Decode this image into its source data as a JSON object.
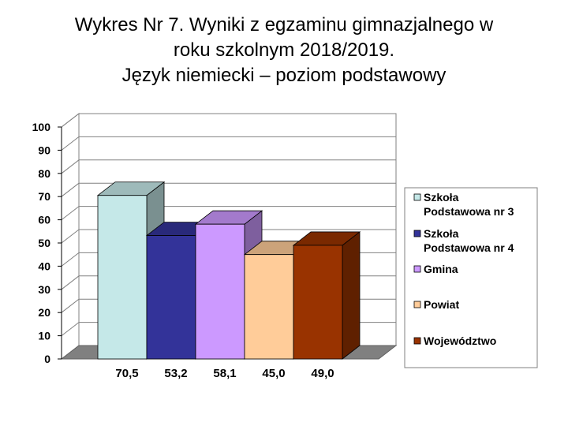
{
  "title_lines": [
    "Wykres Nr 7. Wyniki z egzaminu gimnazjalnego   w",
    "roku szkolnym 2018/2019.",
    "Język niemiecki – poziom podstawowy"
  ],
  "chart_data": {
    "type": "bar",
    "title": "Wykres Nr 7. Wyniki z egzaminu gimnazjalnego w roku szkolnym 2018/2019. Język niemiecki – poziom podstawowy",
    "categories": [
      "Szkoła Podstawowa nr 3",
      "Szkoła Podstawowa nr 4",
      "Gmina",
      "Powiat",
      "Województwo"
    ],
    "values": [
      70.5,
      53.2,
      58.1,
      45.0,
      49.0
    ],
    "value_labels": [
      "70,5",
      "53,2",
      "58,1",
      "45,0",
      "49,0"
    ],
    "colors": [
      "#c5e8e8",
      "#333399",
      "#cc99ff",
      "#ffcc99",
      "#993300"
    ],
    "legend_lines": [
      [
        "Szkoła",
        "Podstawowa nr 3"
      ],
      [
        "Szkoła",
        "Podstawowa nr 4"
      ],
      [
        "Gmina"
      ],
      [
        "Powiat"
      ],
      [
        "Województwo"
      ]
    ],
    "yticks": [
      "0",
      "10",
      "20",
      "30",
      "40",
      "50",
      "60",
      "70",
      "80",
      "90",
      "100"
    ],
    "ylim": [
      0,
      100
    ],
    "grid": true,
    "legend_position": "right",
    "style": "3d"
  }
}
